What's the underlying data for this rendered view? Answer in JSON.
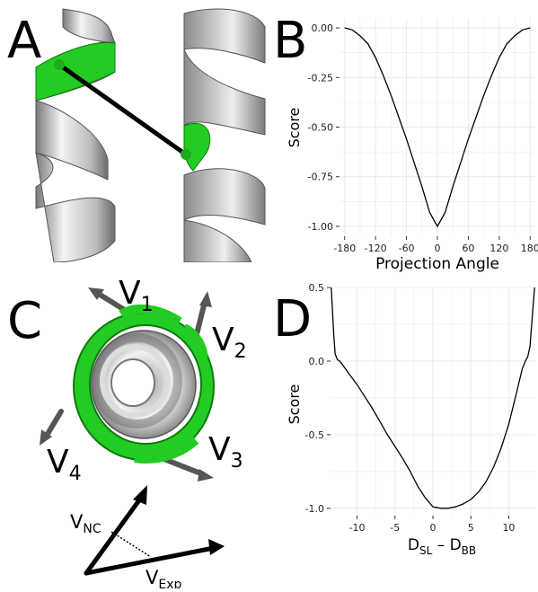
{
  "panels": {
    "A": {
      "letter": "A"
    },
    "B": {
      "letter": "B"
    },
    "C": {
      "letter": "C",
      "vectors": [
        {
          "main": "V",
          "sub": "1"
        },
        {
          "main": "V",
          "sub": "2"
        },
        {
          "main": "V",
          "sub": "3"
        },
        {
          "main": "V",
          "sub": "4"
        }
      ],
      "diagram_labels": {
        "nc": {
          "main": "V",
          "sub": "NC"
        },
        "exp": {
          "main": "V",
          "sub": "Exp"
        }
      }
    },
    "D": {
      "letter": "D"
    }
  },
  "colors": {
    "helix_green": "#22cc22",
    "helix_gray": "#b8b8b8",
    "grid": "#ececec",
    "line": "#000000"
  },
  "chart_data": [
    {
      "panel": "B",
      "type": "line",
      "xlabel": "Projection Angle",
      "ylabel": "Score",
      "xlim": [
        -190,
        190
      ],
      "ylim": [
        -1.05,
        0.05
      ],
      "xticks": [
        -180,
        -120,
        -60,
        0,
        60,
        120,
        180
      ],
      "yticks": [
        0.0,
        -0.25,
        -0.5,
        -0.75,
        -1.0
      ],
      "ytick_labels": [
        "0.00",
        "-0.25",
        "-0.50",
        "-0.75",
        "-1.00"
      ],
      "grid": true,
      "series": [
        {
          "x": [
            -180,
            -165,
            -150,
            -135,
            -120,
            -105,
            -90,
            -75,
            -60,
            -45,
            -30,
            -15,
            0,
            15,
            30,
            45,
            60,
            75,
            90,
            105,
            120,
            135,
            150,
            165,
            180
          ],
          "y": [
            0.0,
            -0.01,
            -0.04,
            -0.08,
            -0.15,
            -0.24,
            -0.34,
            -0.45,
            -0.56,
            -0.68,
            -0.8,
            -0.93,
            -1.0,
            -0.93,
            -0.8,
            -0.68,
            -0.56,
            -0.45,
            -0.34,
            -0.24,
            -0.15,
            -0.08,
            -0.04,
            -0.01,
            0.0
          ]
        }
      ]
    },
    {
      "panel": "D",
      "type": "line",
      "xlabel": {
        "main": "D",
        "sub1": "SL",
        "sep": " – ",
        "main2": "D",
        "sub2": "BB"
      },
      "ylabel": "Score",
      "xlim": [
        -13.5,
        13.5
      ],
      "ylim": [
        -1.05,
        0.5
      ],
      "xticks": [
        -10,
        -5,
        0,
        5,
        10
      ],
      "yticks": [
        0.5,
        0.0,
        -0.5,
        -1.0
      ],
      "ytick_labels": [
        "0.5",
        "0.0",
        "-0.5",
        "-1.0"
      ],
      "grid": true,
      "series": [
        {
          "x": [
            -13.4,
            -13.1,
            -12.9,
            -12.6,
            -12.3,
            -12.0,
            -11.0,
            -10.0,
            -9.0,
            -8.0,
            -7.0,
            -6.0,
            -5.0,
            -4.0,
            -3.0,
            -2.0,
            -1.0,
            0.0,
            1.0,
            2.0,
            3.0,
            4.0,
            5.0,
            6.0,
            7.0,
            8.0,
            9.0,
            10.0,
            11.0,
            11.8,
            12.2,
            12.5,
            12.8,
            13.1,
            13.4
          ],
          "y": [
            0.5,
            0.2,
            0.05,
            0.01,
            0.0,
            -0.02,
            -0.09,
            -0.16,
            -0.24,
            -0.32,
            -0.41,
            -0.5,
            -0.58,
            -0.66,
            -0.75,
            -0.85,
            -0.93,
            -0.99,
            -1.0,
            -1.0,
            -0.99,
            -0.97,
            -0.94,
            -0.89,
            -0.82,
            -0.72,
            -0.59,
            -0.43,
            -0.22,
            -0.05,
            0.0,
            0.03,
            0.1,
            0.3,
            0.5
          ]
        }
      ]
    }
  ]
}
